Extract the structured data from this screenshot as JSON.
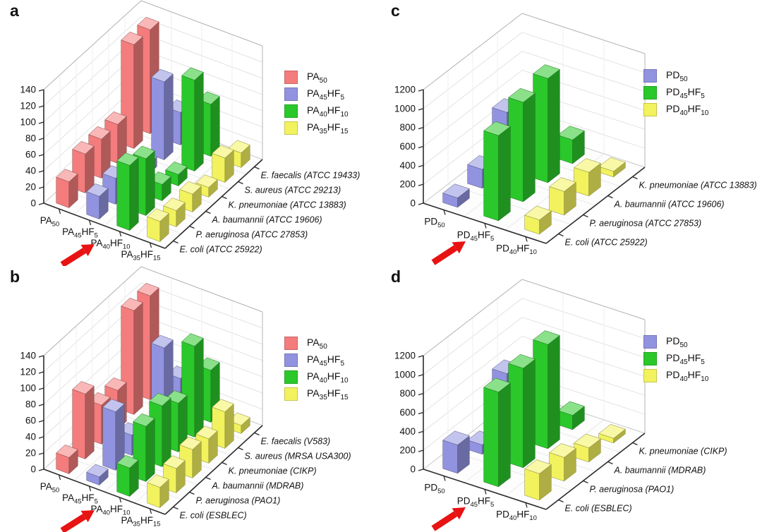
{
  "figure": {
    "description": "Four-panel 3D bar charts of antimicrobial polymer activity against bacterial strains",
    "panel_letters": [
      "a",
      "b",
      "c",
      "d"
    ]
  },
  "chart_data": [
    {
      "letter": "a",
      "type": "bar",
      "projection": "3d",
      "y_axis": {
        "min": 0,
        "max": 140,
        "tick_step": 20,
        "ticks": [
          0,
          20,
          40,
          60,
          80,
          100,
          120,
          140
        ]
      },
      "categories": [
        "PA_50",
        "PA_45_HF_5",
        "PA_40_HF_10",
        "PA_35_HF_15"
      ],
      "strains_front_to_back": [
        "E. coli (ATCC 25922)",
        "P. aeruginosa (ATCC 27853)",
        "A. baumannii (ATCC 19606)",
        "K. pneumoniae (ATCC 13883)",
        "S. aureus (ATCC 29213)",
        "E. faecalis (ATCC 19433)"
      ],
      "series": [
        {
          "name": "PA_50",
          "color": "#f47c7c",
          "values": [
            32,
            48,
            48,
            48,
            128,
            128
          ]
        },
        {
          "name": "PA_45_HF_5",
          "color": "#9193e0",
          "values": [
            28,
            32,
            14,
            12,
            96,
            40
          ]
        },
        {
          "name": "PA_40_HF_10",
          "color": "#2bc82b",
          "values": [
            80,
            70,
            20,
            14,
            112,
            64
          ]
        },
        {
          "name": "PA_35_HF_15",
          "color": "#f2f25e",
          "values": [
            25,
            20,
            22,
            12,
            30,
            18
          ]
        }
      ],
      "arrow_points_to": "PA_40_HF_10"
    },
    {
      "letter": "b",
      "type": "bar",
      "projection": "3d",
      "y_axis": {
        "min": 0,
        "max": 140,
        "tick_step": 20,
        "ticks": [
          0,
          20,
          40,
          60,
          80,
          100,
          120,
          140
        ]
      },
      "categories": [
        "PA_50",
        "PA_45_HF_5",
        "PA_40_HF_10",
        "PA_35_HF_15"
      ],
      "strains_front_to_back": [
        "E. coli (ESBLEC)",
        "P. aeruginosa (PAO1)",
        "A. baumannii (MDRAB)",
        "K. pneumoniae (CIKP)",
        "S. aureus (MRSA USA300)",
        "E. faecalis (V583)"
      ],
      "series": [
        {
          "name": "PA_50",
          "color": "#f47c7c",
          "values": [
            20,
            80,
            48,
            48,
            128,
            128
          ]
        },
        {
          "name": "PA_45_HF_5",
          "color": "#9193e0",
          "values": [
            10,
            72,
            25,
            15,
            96,
            40
          ]
        },
        {
          "name": "PA_40_HF_10",
          "color": "#2bc82b",
          "values": [
            35,
            68,
            75,
            60,
            112,
            64
          ]
        },
        {
          "name": "PA_35_HF_15",
          "color": "#f2f25e",
          "values": [
            25,
            30,
            35,
            30,
            45,
            10
          ]
        }
      ],
      "arrow_points_to": "PA_40_HF_10"
    },
    {
      "letter": "c",
      "type": "bar",
      "projection": "3d",
      "y_axis": {
        "min": 0,
        "max": 1200,
        "tick_step": 200,
        "ticks": [
          0,
          200,
          400,
          600,
          800,
          1000,
          1200
        ]
      },
      "categories": [
        "PD_50",
        "PD_45_HF_5",
        "PD_40_HF_10"
      ],
      "strains_front_to_back": [
        "E. coli (ATCC 25922)",
        "P. aeruginosa (ATCC 27853)",
        "A. baumannii (ATCC 19606)",
        "K. pneumoniae (ATCC 13883)"
      ],
      "series": [
        {
          "name": "PD_50",
          "color": "#9193e0",
          "values": [
            100,
            200,
            600,
            100
          ]
        },
        {
          "name": "PD_45_HF_5",
          "color": "#2bc82b",
          "values": [
            900,
            1050,
            1100,
            250
          ]
        },
        {
          "name": "PD_40_HF_10",
          "color": "#f2f25e",
          "values": [
            150,
            250,
            250,
            60
          ]
        }
      ],
      "arrow_points_to": "PD_45_HF_5"
    },
    {
      "letter": "d",
      "type": "bar",
      "projection": "3d",
      "y_axis": {
        "min": 0,
        "max": 1200,
        "tick_step": 200,
        "ticks": [
          0,
          200,
          400,
          600,
          800,
          1000,
          1200
        ]
      },
      "categories": [
        "PD_50",
        "PD_45_HF_5",
        "PD_40_HF_10"
      ],
      "strains_front_to_back": [
        "E. coli (ESBLEC)",
        "P. aeruginosa (PAO1)",
        "A. baumannii (MDRAB)",
        "K. pneumoniae (CIKP)"
      ],
      "series": [
        {
          "name": "PD_50",
          "color": "#9193e0",
          "values": [
            300,
            100,
            650,
            100
          ]
        },
        {
          "name": "PD_45_HF_5",
          "color": "#2bc82b",
          "values": [
            1000,
            1050,
            1100,
            150
          ]
        },
        {
          "name": "PD_40_HF_10",
          "color": "#f2f25e",
          "values": [
            280,
            250,
            150,
            50
          ]
        }
      ],
      "arrow_points_to": "PD_45_HF_5"
    }
  ],
  "annotations": {
    "arrow_color": "#e81313",
    "arrow_meaning": "red arrow highlighting one polymer composition on the category axis"
  }
}
